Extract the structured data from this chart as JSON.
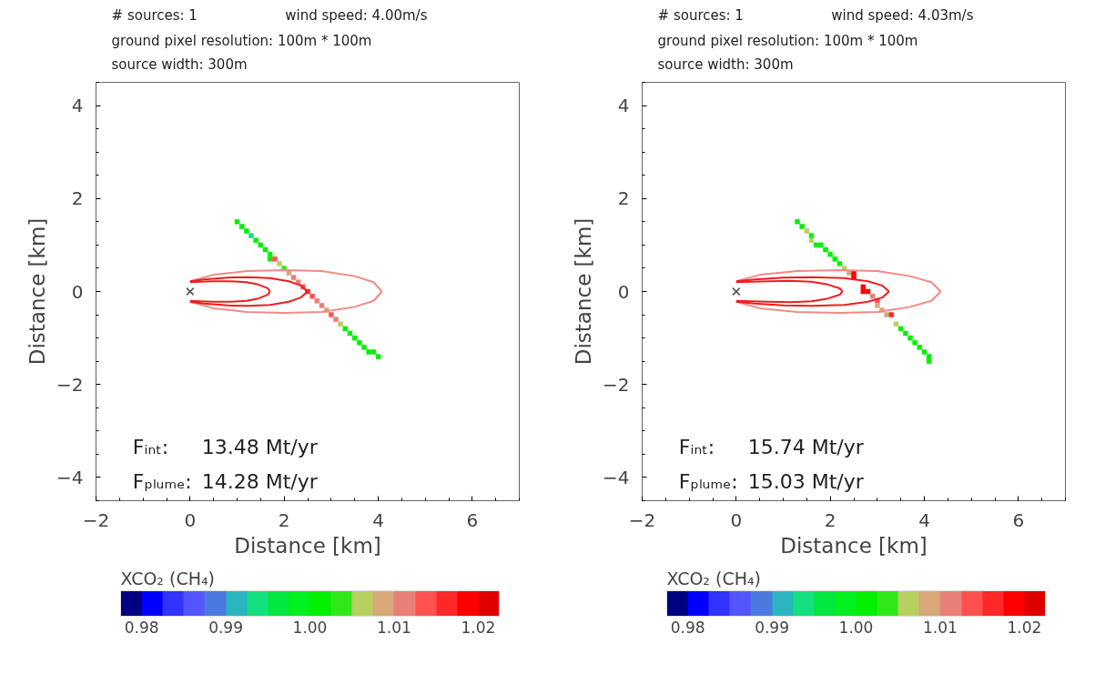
{
  "chart_data": [
    {
      "type": "scatter",
      "xlabel": "Distance [km]",
      "ylabel": "Distance [km]",
      "clabel": "XCO₂ (CH₄)",
      "xlim": [
        -2,
        7
      ],
      "ylim": [
        -4.5,
        4.5
      ],
      "xticks": [
        -2,
        0,
        2,
        4,
        6
      ],
      "yticks": [
        -4,
        -2,
        0,
        2,
        4
      ],
      "clim": [
        0.9775,
        1.0225
      ],
      "cticks": [
        0.98,
        0.99,
        {
          "value": 1.0,
          "label": "1.00"
        },
        1.01,
        1.02
      ],
      "annotations": [
        "# sources:  1",
        "wind speed: 4.00m/s",
        "ground pixel resolution:  100m *   100m",
        "source width:  300m",
        "Fᵢₙₜ:",
        "13.48 Mt/yr",
        "Fₚₗᵤₘₑ:",
        "14.28 Mt/yr"
      ],
      "series": [
        {
          "marker": "square",
          "x": [
            1.0,
            1.1,
            1.2,
            1.3,
            1.4,
            1.5,
            1.6,
            1.7,
            1.7,
            1.8,
            1.9,
            2.0,
            2.1,
            2.2,
            2.3,
            2.4,
            2.5,
            2.6,
            2.7,
            2.8,
            2.9,
            3.0,
            3.1,
            3.2,
            3.3,
            3.4,
            3.5,
            3.6,
            3.7,
            3.8,
            3.9,
            4.0
          ],
          "values": [
            1.5,
            1.4,
            1.3,
            1.2,
            1.1,
            1.0,
            0.9,
            0.8,
            0.7,
            0.7,
            0.6,
            0.5,
            0.4,
            0.3,
            0.2,
            0.1,
            0.0,
            -0.1,
            -0.2,
            -0.3,
            -0.4,
            -0.5,
            -0.6,
            -0.7,
            -0.8,
            -0.9,
            -1.0,
            -1.1,
            -1.2,
            -1.3,
            -1.3,
            -1.4
          ],
          "cvalues": [
            1.001,
            1.001,
            1.001,
            0.994,
            1.001,
            1.001,
            1.001,
            1.001,
            1.001,
            1.013,
            1.006,
            1.004,
            1.009,
            1.011,
            1.012,
            1.013,
            1.017,
            1.014,
            1.012,
            1.011,
            1.009,
            1.013,
            1.012,
            1.006,
            1.001,
            1.001,
            1.001,
            1.001,
            1.001,
            1.001,
            1.001,
            1.001
          ],
          "colors": [
            "#00f000",
            "#00f000",
            "#00f000",
            "#14e080",
            "#00f000",
            "#00f000",
            "#00f000",
            "#00f000",
            "#00f000",
            "#ff5050",
            "#b8d060",
            "#30e818",
            "#d8a878",
            "#e88078",
            "#e88078",
            "#ff5050",
            "#ff2828",
            "#ff5050",
            "#e88078",
            "#e88078",
            "#d8a878",
            "#ff5050",
            "#e88078",
            "#b8d060",
            "#00f000",
            "#00f000",
            "#00f000",
            "#00f000",
            "#00f000",
            "#00f000",
            "#00f000",
            "#00f000"
          ]
        },
        {
          "type": "line",
          "color": "#f08a84",
          "x": [
            0,
            0.5,
            1.2,
            2.0,
            2.8,
            3.5,
            3.9,
            4.08
          ],
          "values": [
            0.22,
            0.36,
            0.44,
            0.46,
            0.44,
            0.33,
            0.2,
            0
          ]
        },
        {
          "type": "line",
          "color": "#f08a84",
          "x": [
            0,
            0.5,
            1.2,
            2.0,
            2.8,
            3.5,
            3.9,
            4.08
          ],
          "values": [
            -0.22,
            -0.36,
            -0.44,
            -0.46,
            -0.44,
            -0.33,
            -0.2,
            0
          ]
        },
        {
          "type": "line",
          "color": "#f01c1c",
          "x": [
            0,
            0.3,
            0.8,
            1.25,
            1.7,
            2.1,
            2.35,
            2.5
          ],
          "values": [
            0.22,
            0.26,
            0.3,
            0.31,
            0.29,
            0.22,
            0.13,
            0
          ]
        },
        {
          "type": "line",
          "color": "#f01c1c",
          "x": [
            0,
            0.3,
            0.8,
            1.25,
            1.7,
            2.1,
            2.35,
            2.5
          ],
          "values": [
            -0.22,
            -0.26,
            -0.3,
            -0.31,
            -0.29,
            -0.22,
            -0.13,
            0
          ]
        },
        {
          "type": "line",
          "color": "#f01c1c",
          "x": [
            0,
            0.2,
            0.5,
            0.85,
            1.2,
            1.45,
            1.65,
            1.7
          ],
          "values": [
            0.2,
            0.21,
            0.22,
            0.22,
            0.2,
            0.15,
            0.07,
            0
          ]
        },
        {
          "type": "line",
          "color": "#f01c1c",
          "x": [
            0,
            0.2,
            0.5,
            0.85,
            1.2,
            1.45,
            1.65,
            1.7
          ],
          "values": [
            -0.2,
            -0.21,
            -0.22,
            -0.22,
            -0.2,
            -0.15,
            -0.07,
            0
          ]
        },
        {
          "type": "scatter",
          "marker": "cross",
          "color": "#505050",
          "x": [
            0
          ],
          "values": [
            0
          ]
        }
      ]
    },
    {
      "type": "scatter",
      "xlabel": "Distance [km]",
      "ylabel": "Distance [km]",
      "clabel": "XCO₂ (CH₄)",
      "xlim": [
        -2,
        7
      ],
      "ylim": [
        -4.5,
        4.5
      ],
      "xticks": [
        -2,
        0,
        2,
        4,
        6
      ],
      "yticks": [
        -4,
        -2,
        0,
        2,
        4
      ],
      "clim": [
        0.9775,
        1.0225
      ],
      "cticks": [
        0.98,
        0.99,
        {
          "value": 1.0,
          "label": "1.00"
        },
        1.01,
        1.02
      ],
      "annotations": [
        "# sources:  1",
        "wind speed: 4.03m/s",
        "ground pixel resolution:  100m *   100m",
        "source width:  300m",
        "Fᵢₙₜ:",
        "15.74 Mt/yr",
        "Fₚₗᵤₘₑ:",
        "15.03 Mt/yr"
      ],
      "series": [
        {
          "marker": "square",
          "x": [
            1.3,
            1.4,
            1.5,
            1.6,
            1.6,
            1.7,
            1.8,
            1.9,
            2.0,
            2.1,
            2.2,
            2.3,
            2.4,
            2.5,
            2.5,
            2.7,
            2.7,
            2.8,
            2.9,
            3.0,
            3.0,
            3.1,
            3.2,
            3.3,
            3.4,
            3.5,
            3.6,
            3.7,
            3.8,
            3.9,
            4.0,
            4.1,
            4.1
          ],
          "values": [
            1.5,
            1.4,
            1.3,
            1.2,
            1.1,
            1.0,
            1.0,
            0.9,
            0.8,
            0.7,
            0.6,
            0.5,
            0.4,
            0.4,
            0.3,
            0.1,
            0.0,
            0.0,
            -0.1,
            -0.2,
            -0.3,
            -0.4,
            -0.5,
            -0.5,
            -0.7,
            -0.8,
            -0.9,
            -1.0,
            -1.1,
            -1.2,
            -1.3,
            -1.4,
            -1.5
          ],
          "cvalues": [
            1.001,
            1.001,
            1.006,
            1.001,
            1.006,
            1.001,
            1.001,
            1.001,
            1.001,
            1.001,
            1.001,
            1.006,
            1.009,
            1.018,
            1.018,
            1.018,
            1.018,
            1.018,
            1.011,
            1.014,
            1.009,
            1.009,
            1.009,
            1.017,
            1.006,
            1.001,
            1.001,
            1.001,
            1.001,
            1.001,
            1.001,
            1.001,
            1.001
          ],
          "colors": [
            "#00f000",
            "#00f000",
            "#b8d060",
            "#00f000",
            "#b8d060",
            "#00f000",
            "#00f000",
            "#00f000",
            "#00f000",
            "#00f000",
            "#00f000",
            "#b8d060",
            "#d8a878",
            "#ff0000",
            "#ff0000",
            "#ff0000",
            "#ff0000",
            "#ff0000",
            "#e88078",
            "#ff5050",
            "#d8a878",
            "#d8a878",
            "#d8a878",
            "#ff2828",
            "#b8d060",
            "#00f000",
            "#00f000",
            "#00f000",
            "#00f000",
            "#00f000",
            "#00f000",
            "#00f000",
            "#00f000"
          ]
        },
        {
          "type": "line",
          "color": "#f08a84",
          "x": [
            0,
            0.5,
            1.3,
            2.2,
            3.0,
            3.7,
            4.15,
            4.35
          ],
          "values": [
            0.22,
            0.36,
            0.44,
            0.46,
            0.44,
            0.33,
            0.2,
            0
          ]
        },
        {
          "type": "line",
          "color": "#f08a84",
          "x": [
            0,
            0.5,
            1.3,
            2.2,
            3.0,
            3.7,
            4.15,
            4.35
          ],
          "values": [
            -0.22,
            -0.36,
            -0.44,
            -0.46,
            -0.44,
            -0.33,
            -0.2,
            0
          ]
        },
        {
          "type": "line",
          "color": "#f01c1c",
          "x": [
            0,
            0.4,
            1.0,
            1.6,
            2.3,
            2.8,
            3.1,
            3.25
          ],
          "values": [
            0.22,
            0.26,
            0.3,
            0.31,
            0.29,
            0.22,
            0.13,
            0
          ]
        },
        {
          "type": "line",
          "color": "#f01c1c",
          "x": [
            0,
            0.4,
            1.0,
            1.6,
            2.3,
            2.8,
            3.1,
            3.25
          ],
          "values": [
            -0.22,
            -0.26,
            -0.3,
            -0.31,
            -0.29,
            -0.22,
            -0.13,
            0
          ]
        },
        {
          "type": "line",
          "color": "#f01c1c",
          "x": [
            0,
            0.3,
            0.7,
            1.15,
            1.6,
            1.95,
            2.2,
            2.26
          ],
          "values": [
            0.2,
            0.21,
            0.22,
            0.23,
            0.21,
            0.15,
            0.07,
            0
          ]
        },
        {
          "type": "line",
          "color": "#f01c1c",
          "x": [
            0,
            0.3,
            0.7,
            1.15,
            1.6,
            1.95,
            2.2,
            2.26
          ],
          "values": [
            -0.2,
            -0.21,
            -0.22,
            -0.23,
            -0.21,
            -0.15,
            -0.07,
            0
          ]
        },
        {
          "type": "scatter",
          "marker": "cross",
          "color": "#505050",
          "x": [
            0
          ],
          "values": [
            0
          ]
        }
      ]
    }
  ]
}
